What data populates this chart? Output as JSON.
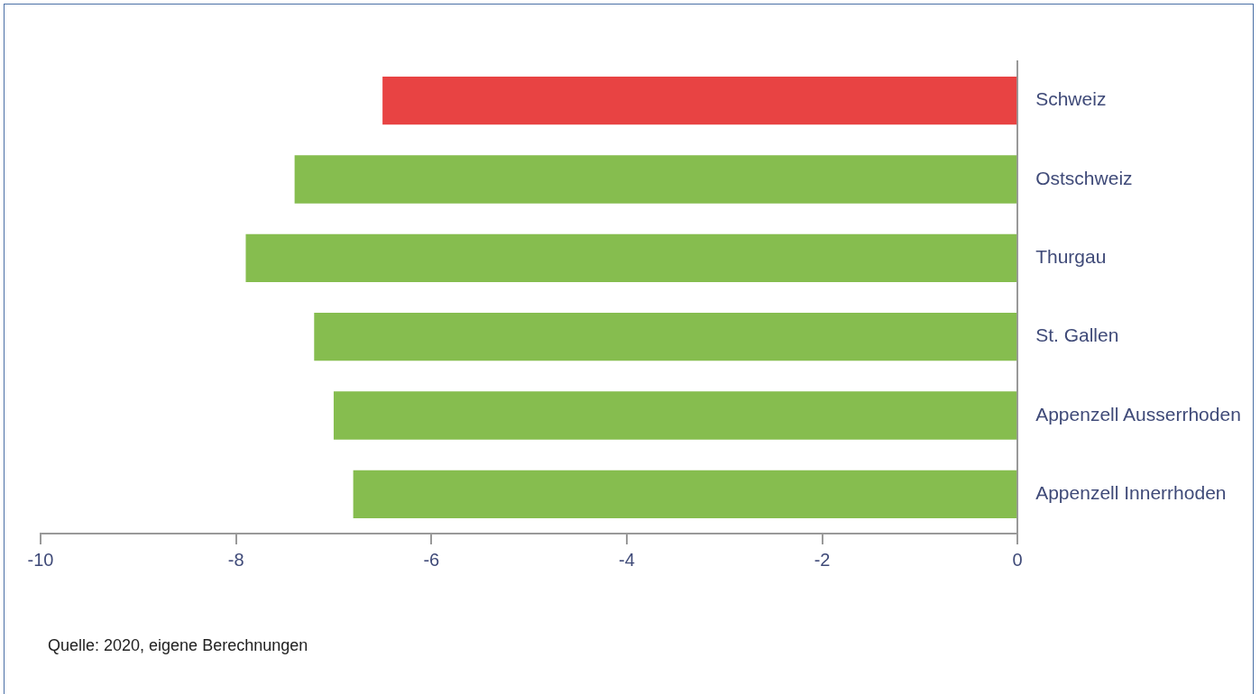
{
  "chart_data": {
    "type": "bar",
    "orientation": "horizontal",
    "categories": [
      "Schweiz",
      "Ostschweiz",
      "Thurgau",
      "St. Gallen",
      "Appenzell Ausserrhoden",
      "Appenzell Innerrhoden"
    ],
    "values": [
      -6.5,
      -7.4,
      -7.9,
      -7.2,
      -7.0,
      -6.8
    ],
    "colors": [
      "#e84343",
      "#86bd4f",
      "#86bd4f",
      "#86bd4f",
      "#86bd4f",
      "#86bd4f"
    ],
    "xlim": [
      -10,
      0
    ],
    "xticks": [
      -10,
      -8,
      -6,
      -4,
      -2,
      0
    ],
    "grid": false,
    "legend": false,
    "annotations": [
      "Quelle: 2020, eigene Berechnungen"
    ]
  }
}
